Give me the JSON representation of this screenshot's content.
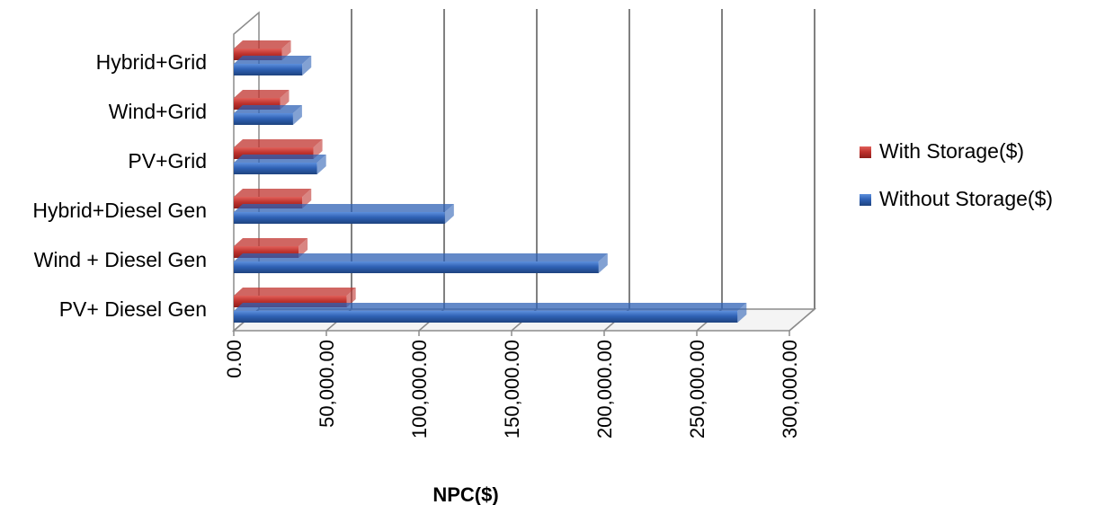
{
  "chart_data": {
    "type": "bar",
    "orientation": "horizontal",
    "style": "3d",
    "categories": [
      "PV+ Diesel Gen",
      "Wind + Diesel Gen",
      "Hybrid+Diesel Gen",
      "PV+Grid",
      "Wind+Grid",
      "Hybrid+Grid"
    ],
    "series": [
      {
        "name": "With Storage($)",
        "color": "#c0332e",
        "values": [
          61000,
          35000,
          37000,
          43000,
          25000,
          26000
        ]
      },
      {
        "name": "Without Storage($)",
        "color": "#2f62b5",
        "values": [
          272000,
          197000,
          114000,
          45000,
          32000,
          37000
        ]
      }
    ],
    "xlabel": "NPC($)",
    "ylabel": "",
    "xlim": [
      0,
      300000
    ],
    "xticks": [
      "0.00",
      "50,000.00",
      "100,000.00",
      "150,000.00",
      "200,000.00",
      "250,000.00",
      "300,000.00"
    ],
    "grid": true,
    "legend": "right"
  }
}
